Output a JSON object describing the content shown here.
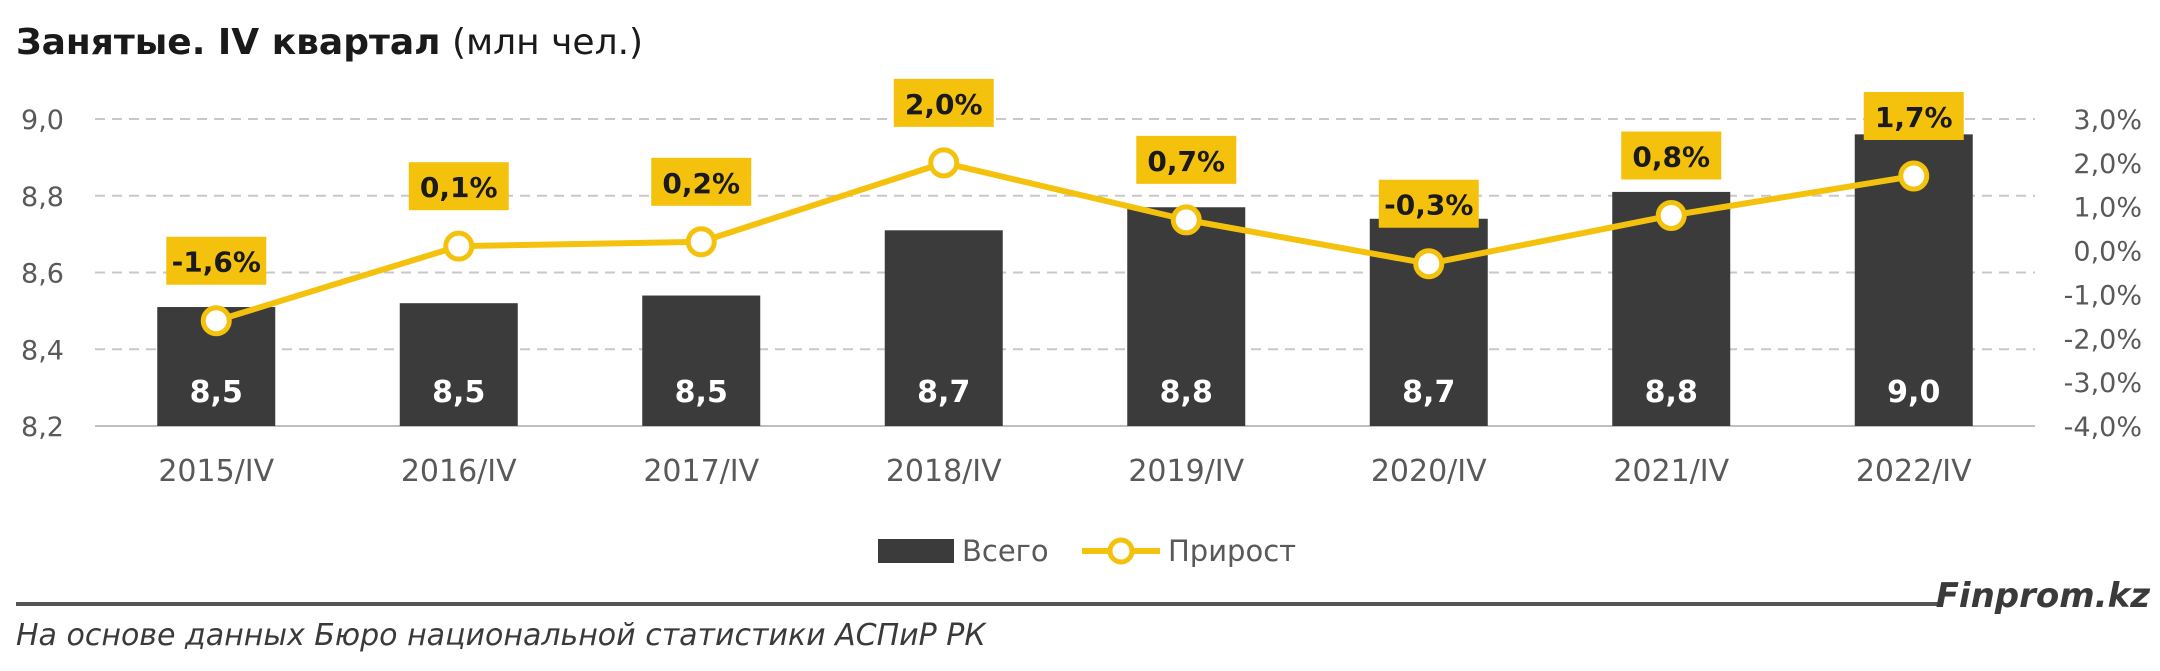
{
  "title": {
    "bold": "Занятые. IV квартал",
    "normal": "(млн чел.)"
  },
  "footer": {
    "source": "На основе данных Бюро национальной статистики АСПиР РК",
    "brand": "Finprom.kz"
  },
  "colors": {
    "bar": "#3b3b3b",
    "line": "#f4c20d",
    "label_bg": "#f4c20d",
    "grid": "#c8c8c8",
    "axis_text": "#595959"
  },
  "chart_data": {
    "type": "bar",
    "categories": [
      "2015/IV",
      "2016/IV",
      "2017/IV",
      "2018/IV",
      "2019/IV",
      "2020/IV",
      "2021/IV",
      "2022/IV"
    ],
    "series": [
      {
        "name": "Всего",
        "type": "bar",
        "axis": "left",
        "values": [
          8.51,
          8.52,
          8.54,
          8.71,
          8.77,
          8.74,
          8.81,
          8.96
        ],
        "labels": [
          "8,5",
          "8,5",
          "8,5",
          "8,7",
          "8,8",
          "8,7",
          "8,8",
          "9,0"
        ]
      },
      {
        "name": "Прирост",
        "type": "line",
        "axis": "right",
        "values": [
          -1.6,
          0.1,
          0.2,
          2.0,
          0.7,
          -0.3,
          0.8,
          1.7
        ],
        "labels": [
          "-1,6%",
          "0,1%",
          "0,2%",
          "2,0%",
          "0,7%",
          "-0,3%",
          "0,8%",
          "1,7%"
        ]
      }
    ],
    "y_left": {
      "min": 8.2,
      "max": 9.0,
      "ticks": [
        "8,2",
        "8,4",
        "8,6",
        "8,8",
        "9,0"
      ]
    },
    "y_right": {
      "min": -4.0,
      "max": 3.0,
      "ticks": [
        "-4,0%",
        "-3,0%",
        "-2,0%",
        "-1,0%",
        "0,0%",
        "1,0%",
        "2,0%",
        "3,0%"
      ]
    },
    "grid": true,
    "legend": "bottom"
  }
}
